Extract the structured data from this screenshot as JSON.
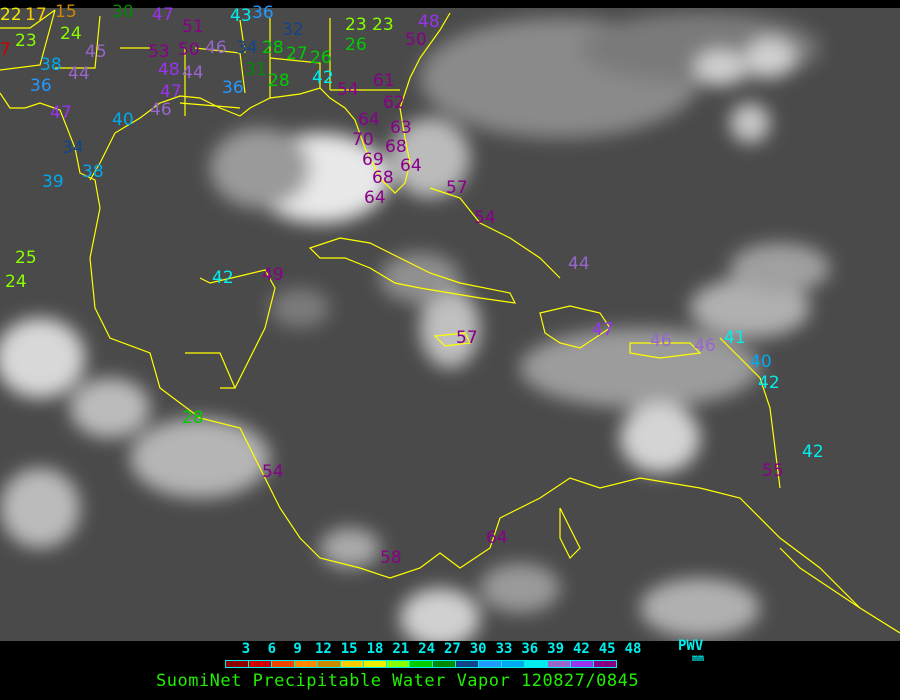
{
  "title": "SuomiNet Precipitable Water Vapor 120827/0845",
  "legend": {
    "unit_top": "PWV",
    "unit_bottom": "mm",
    "ticks": [
      "3",
      "6",
      "9",
      "12",
      "15",
      "18",
      "21",
      "24",
      "27",
      "30",
      "33",
      "36",
      "39",
      "42",
      "45",
      "48"
    ],
    "colors": [
      "#8b0000",
      "#cc0000",
      "#ee4400",
      "#ff8800",
      "#cc8800",
      "#ffcc00",
      "#eeee00",
      "#88ff00",
      "#00cc00",
      "#008800",
      "#114488",
      "#2299ff",
      "#00aaee",
      "#00eeee",
      "#9966cc",
      "#9933ee",
      "#880088"
    ]
  },
  "coastline_color": "#ffff00",
  "stations": [
    "22",
    "17",
    "15",
    "30",
    "47",
    "51",
    "43",
    "36",
    "23",
    "23",
    "48",
    "26",
    "50",
    "53",
    "50",
    "46",
    "34",
    "32",
    "28",
    "27",
    "26",
    "38",
    "44",
    "45",
    "36",
    "48",
    "44",
    "31",
    "36",
    "28",
    "42",
    "54",
    "61",
    "62",
    "64",
    "47",
    "46",
    "47",
    "40",
    "63",
    "70",
    "68",
    "64",
    "34",
    "38",
    "39",
    "69",
    "68",
    "64",
    "57",
    "54",
    "44",
    "25",
    "24",
    "42",
    "49",
    "57",
    "47",
    "46",
    "46",
    "41",
    "40",
    "42",
    "28",
    "54",
    "55",
    "42",
    "64",
    "58",
    "7",
    "24",
    "23"
  ]
}
